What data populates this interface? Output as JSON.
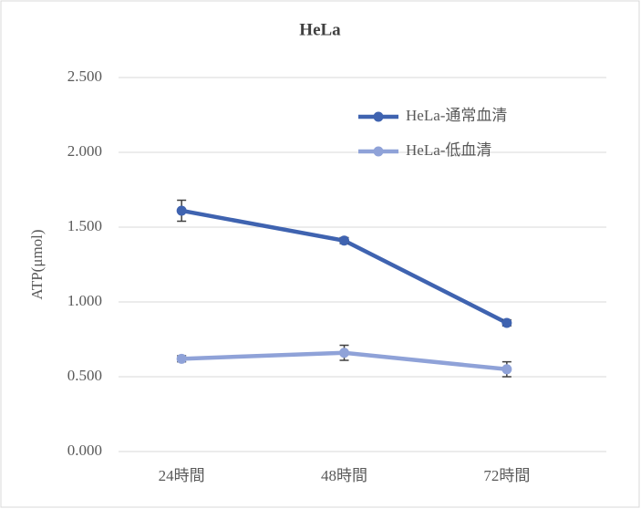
{
  "chart_data": {
    "type": "line",
    "title": "HeLa",
    "y_label": "ATP(μmol)",
    "categories": [
      "24時間",
      "48時間",
      "72時間"
    ],
    "series": [
      {
        "name": "HeLa-通常血清",
        "color": "#3f63b0",
        "values": [
          1.61,
          1.41,
          0.86
        ],
        "errors": [
          0.07,
          0.02,
          0.02
        ]
      },
      {
        "name": "HeLa-低血清",
        "color": "#8fa2d8",
        "values": [
          0.62,
          0.66,
          0.55
        ],
        "errors": [
          0.02,
          0.05,
          0.05
        ]
      }
    ],
    "ylim": [
      0,
      2.5
    ],
    "yticks": [
      {
        "value": 0,
        "label": "0.000"
      },
      {
        "value": 0.5,
        "label": "0.500"
      },
      {
        "value": 1,
        "label": "1.000"
      },
      {
        "value": 1.5,
        "label": "1.500"
      },
      {
        "value": 2,
        "label": "2.000"
      },
      {
        "value": 2.5,
        "label": "2.500"
      }
    ],
    "grid": true,
    "legend": "upper right"
  }
}
